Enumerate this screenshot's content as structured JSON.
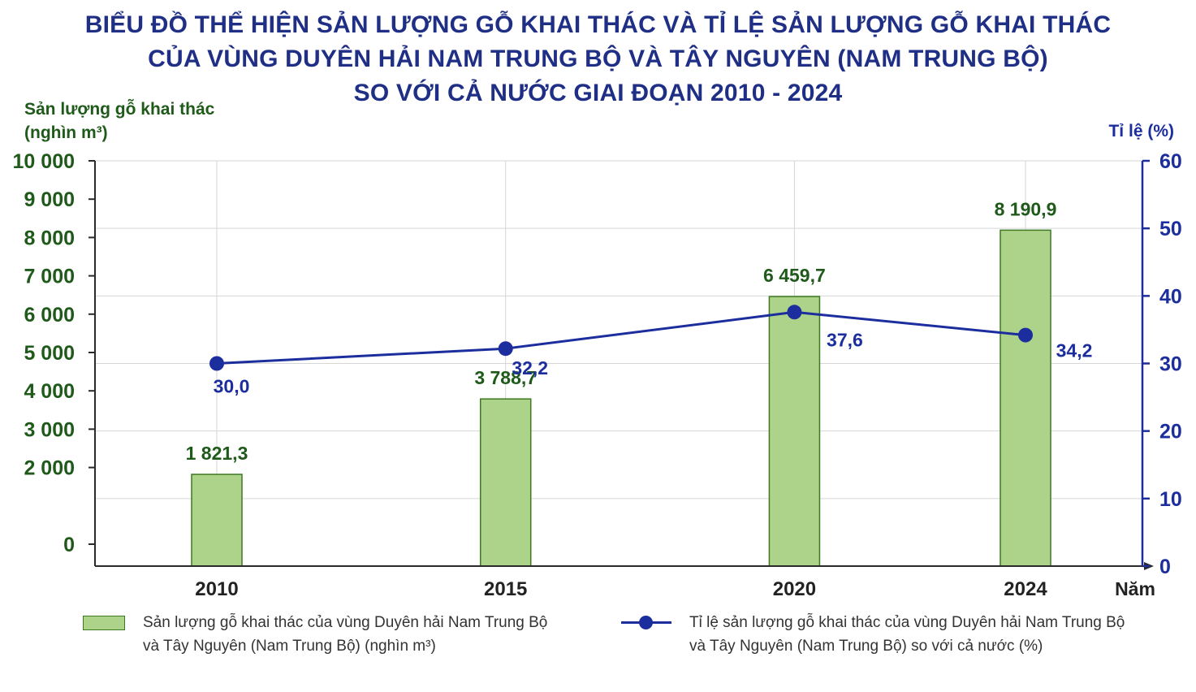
{
  "title": {
    "line1": "BIỂU ĐỒ THỂ HIỆN SẢN LƯỢNG GỖ KHAI THÁC VÀ TỈ LỆ SẢN LƯỢNG GỖ KHAI THÁC",
    "line2": "CỦA VÙNG DUYÊN HẢI NAM TRUNG BỘ VÀ TÂY NGUYÊN (NAM TRUNG BỘ)",
    "line3": "SO VỚI CẢ NƯỚC GIAI ĐOẠN 2010 - 2024"
  },
  "legend": {
    "bar_line1": "Sản lượng gỗ khai thác của vùng Duyên hải Nam Trung Bộ",
    "bar_line2": "và Tây Nguyên (Nam Trung Bộ) (nghìn m³)",
    "line_line1": "Tỉ lệ sản lượng gỗ khai thác của vùng Duyên hải Nam Trung Bộ",
    "line_line2": "và Tây Nguyên (Nam Trung Bộ) so với cả nước (%)"
  },
  "colors": {
    "title": "#1f2f86",
    "left_axis": "#1f5a1a",
    "right_axis": "#1c2e9e",
    "bar_fill": "#add38b",
    "bar_stroke": "#3d7a20",
    "line": "#1c2e9e",
    "grid": "#d6d6d6"
  },
  "chart_data": {
    "type": "bar+line",
    "categories": [
      "2010",
      "2015",
      "2020",
      "2024"
    ],
    "x_positions": [
      2010,
      2015,
      2020,
      2024
    ],
    "xlabel": "Năm",
    "ylabel_left_line1": "Sản lượng gỗ khai thác",
    "ylabel_left_line2": "(nghìn m³)",
    "ylabel_right": "Tỉ lệ (%)",
    "ylim_left": [
      0,
      10000
    ],
    "ylim_right": [
      0,
      60
    ],
    "left_ticks": [
      0,
      2000,
      3000,
      4000,
      5000,
      6000,
      7000,
      8000,
      9000,
      10000
    ],
    "left_tick_labels": [
      "0",
      "2 000",
      "3 000",
      "4 000",
      "5 000",
      "6 000",
      "7 000",
      "8 000",
      "9 000",
      "10 000"
    ],
    "right_ticks": [
      0,
      10,
      20,
      30,
      40,
      50,
      60
    ],
    "right_tick_labels": [
      "0",
      "10",
      "20",
      "30",
      "40",
      "50",
      "60"
    ],
    "grid": true,
    "legend_position": "bottom",
    "series": [
      {
        "type": "bar",
        "axis": "left",
        "values": [
          1821.3,
          3788.7,
          6459.7,
          8190.9
        ],
        "labels": [
          "1 821,3",
          "3 788,7",
          "6 459,7",
          "8 190,9"
        ]
      },
      {
        "type": "line",
        "axis": "right",
        "values": [
          30.0,
          32.2,
          37.6,
          34.2
        ],
        "labels": [
          "30,0",
          "32,2",
          "37,6",
          "34,2"
        ]
      }
    ]
  }
}
